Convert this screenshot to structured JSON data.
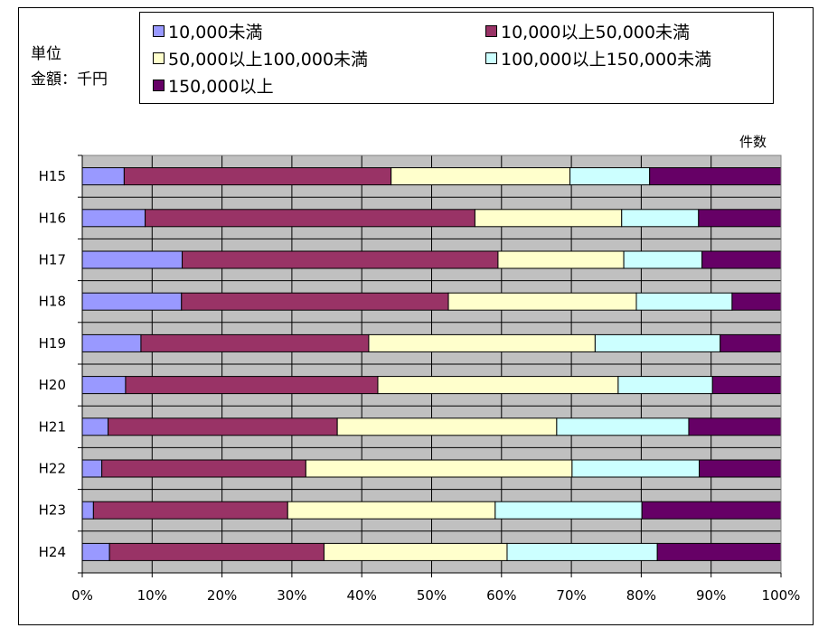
{
  "unit_label": {
    "line1": "単位",
    "line2": "金額：千円"
  },
  "chart_data": {
    "type": "bar",
    "orientation": "horizontal",
    "stacked": "percent",
    "title": "",
    "xlabel": "",
    "ylabel": "",
    "corner_label": "件数",
    "categories": [
      "H15",
      "H16",
      "H17",
      "H18",
      "H19",
      "H20",
      "H21",
      "H22",
      "H23",
      "H24"
    ],
    "x_ticks": [
      "0%",
      "10%",
      "20%",
      "30%",
      "40%",
      "50%",
      "60%",
      "70%",
      "80%",
      "90%",
      "100%"
    ],
    "xlim": [
      0,
      100
    ],
    "grid": true,
    "legend_position": "top",
    "series": [
      {
        "name": "10,000未満",
        "color": "#9999ff",
        "values": [
          6,
          9,
          14.3,
          14.2,
          8.4,
          6.2,
          3.7,
          2.8,
          1.6,
          3.9
        ]
      },
      {
        "name": "10,000以上50,000未満",
        "color": "#993366",
        "values": [
          38.2,
          47.2,
          45.2,
          38.2,
          32.6,
          36.1,
          32.8,
          29.2,
          27.8,
          30.7
        ]
      },
      {
        "name": "50,000以上100,000未満",
        "color": "#ffffcc",
        "values": [
          25.6,
          21,
          18,
          26.9,
          32.4,
          34.4,
          31.4,
          38.1,
          29.7,
          26.2
        ]
      },
      {
        "name": "100,000以上150,000未満",
        "color": "#ccffff",
        "values": [
          11.4,
          11,
          11.2,
          13.7,
          17.9,
          13.5,
          18.9,
          18.2,
          21,
          21.5
        ]
      },
      {
        "name": "150,000以上",
        "color": "#660066",
        "values": [
          18.8,
          11.8,
          11.3,
          7,
          8.7,
          9.8,
          13.2,
          11.7,
          19.9,
          17.7
        ]
      }
    ]
  }
}
